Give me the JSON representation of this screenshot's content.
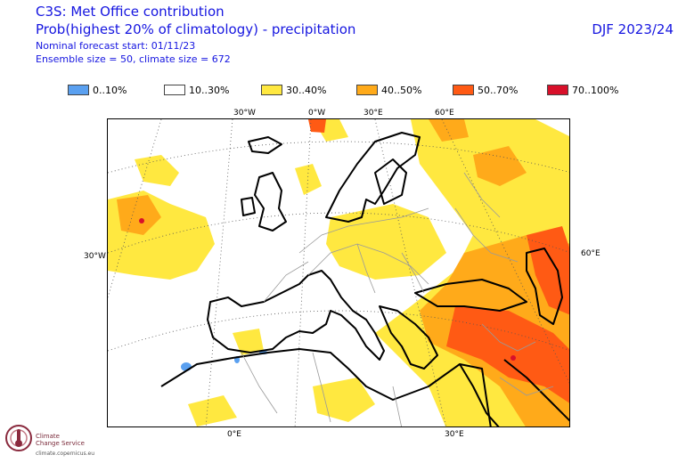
{
  "header": {
    "title": "C3S: Met Office contribution",
    "subtitle": "Prob(highest 20% of climatology) - precipitation",
    "forecast_start": "Nominal forecast start: 01/11/23",
    "ensemble": "Ensemble size = 50, climate size = 672",
    "season": "DJF 2023/24"
  },
  "legend": [
    {
      "label": "0..10%",
      "color": "#5aa0f0"
    },
    {
      "label": "10..30%",
      "color": "#ffffff"
    },
    {
      "label": "30..40%",
      "color": "#ffe840"
    },
    {
      "label": "40..50%",
      "color": "#ffaa1a"
    },
    {
      "label": "50..70%",
      "color": "#ff5a14"
    },
    {
      "label": "70..100%",
      "color": "#d8102a"
    }
  ],
  "map": {
    "lon_labels_top": [
      "30°W",
      "0°W",
      "30°E",
      "60°E"
    ],
    "lon_labels_bottom": [
      "0°E",
      "30°E"
    ],
    "lat_labels_left": [
      "30°W"
    ],
    "lat_labels_right": [
      "60°E"
    ]
  },
  "logo": {
    "name_line1": "Climate",
    "name_line2": "Change Service",
    "url": "climate.copernicus.eu"
  }
}
